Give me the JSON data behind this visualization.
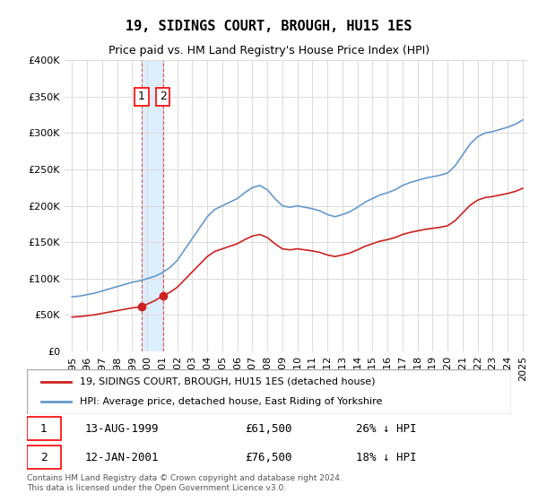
{
  "title": "19, SIDINGS COURT, BROUGH, HU15 1ES",
  "subtitle": "Price paid vs. HM Land Registry's House Price Index (HPI)",
  "legend_line1": "19, SIDINGS COURT, BROUGH, HU15 1ES (detached house)",
  "legend_line2": "HPI: Average price, detached house, East Riding of Yorkshire",
  "footnote": "Contains HM Land Registry data © Crown copyright and database right 2024.\nThis data is licensed under the Open Government Licence v3.0.",
  "transaction1_date": "13-AUG-1999",
  "transaction1_price": 61500,
  "transaction1_label": "26% ↓ HPI",
  "transaction2_date": "12-JAN-2001",
  "transaction2_price": 76500,
  "transaction2_label": "18% ↓ HPI",
  "hpi_color": "#6699cc",
  "price_color": "#cc2222",
  "marker_color": "#cc2222",
  "shade_color": "#ddeeff",
  "grid_color": "#dddddd",
  "ylim": [
    0,
    400000
  ],
  "yticks": [
    0,
    50000,
    100000,
    150000,
    200000,
    250000,
    300000,
    350000,
    400000
  ],
  "xlabel_start_year": 1995,
  "xlabel_end_year": 2025,
  "background_color": "#ffffff"
}
